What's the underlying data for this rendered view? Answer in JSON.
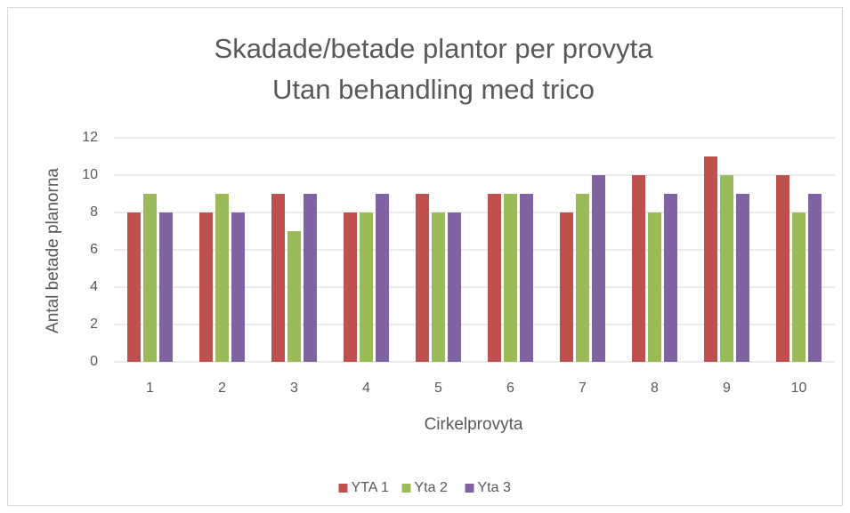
{
  "chart_data": {
    "type": "bar",
    "title": "Skadade/betade plantor per provyta",
    "subtitle": "Utan behandling med trico",
    "x_label": "Cirkelprovyta",
    "y_label": "Antal betade planorna",
    "categories": [
      "1",
      "2",
      "3",
      "4",
      "5",
      "6",
      "7",
      "8",
      "9",
      "10"
    ],
    "series": [
      {
        "name": "YTA 1",
        "color": "#c0504d",
        "values": [
          8,
          8,
          9,
          8,
          9,
          9,
          8,
          10,
          11,
          10
        ]
      },
      {
        "name": "Yta 2",
        "color": "#9bbb59",
        "values": [
          9,
          9,
          7,
          8,
          8,
          9,
          9,
          8,
          10,
          8
        ]
      },
      {
        "name": "Yta 3",
        "color": "#8064a2",
        "values": [
          8,
          8,
          9,
          9,
          8,
          9,
          10,
          9,
          9,
          9
        ]
      }
    ],
    "ylim": [
      0,
      12
    ],
    "yticks": [
      0,
      2,
      4,
      6,
      8,
      10,
      12
    ],
    "grid": true,
    "legend": "bottom"
  }
}
